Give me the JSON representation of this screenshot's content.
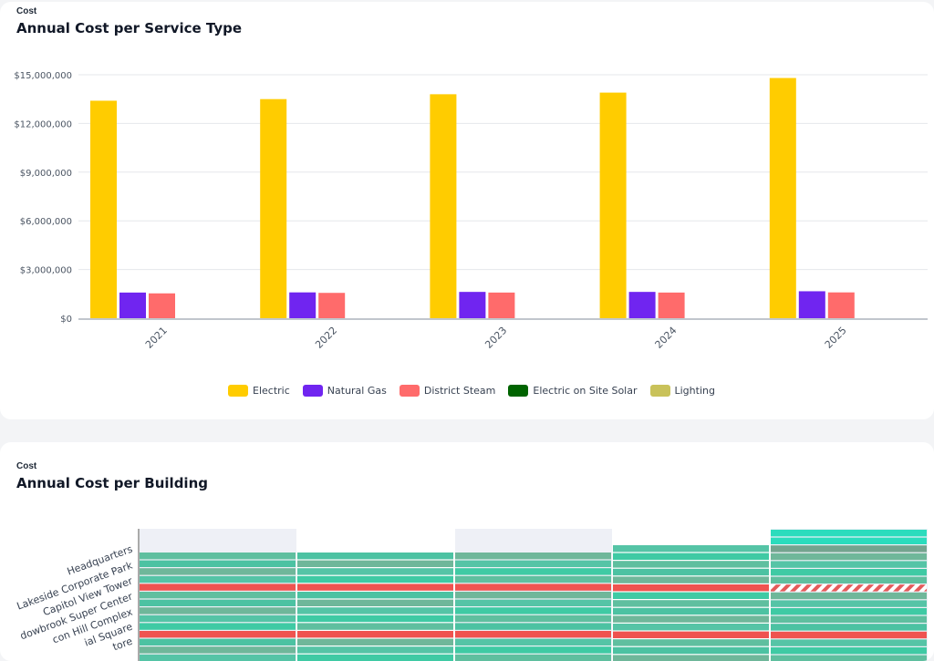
{
  "panel1": {
    "kicker": "Cost",
    "title": "Annual Cost per Service Type"
  },
  "panel2": {
    "kicker": "Cost",
    "title": "Annual Cost per Building",
    "buildings": [
      "Headquarters",
      "Lakeside Corporate Park",
      "Capitol View Tower",
      "dowbrook Super Center",
      "con Hill Complex",
      "ial Square",
      "tore"
    ]
  },
  "chart_data": [
    {
      "type": "bar",
      "title": "Annual Cost per Service Type",
      "xlabel": "",
      "ylabel": "",
      "categories": [
        "2021",
        "2022",
        "2023",
        "2024",
        "2025"
      ],
      "series": [
        {
          "name": "Electric",
          "color": "#ffcc00",
          "values": [
            13400000,
            13500000,
            13800000,
            13900000,
            14800000
          ]
        },
        {
          "name": "Natural Gas",
          "color": "#7025f0",
          "values": [
            1580000,
            1590000,
            1620000,
            1620000,
            1660000
          ]
        },
        {
          "name": "District Steam",
          "color": "#ff6b6b",
          "values": [
            1530000,
            1560000,
            1580000,
            1580000,
            1590000
          ]
        },
        {
          "name": "Electric on Site Solar",
          "color": "#006400",
          "values": [
            0,
            0,
            0,
            0,
            0
          ]
        },
        {
          "name": "Lighting",
          "color": "#c9c25a",
          "values": [
            0,
            0,
            0,
            0,
            0
          ]
        }
      ],
      "ylim": [
        0,
        15000000
      ],
      "yticks": [
        0,
        3000000,
        6000000,
        9000000,
        12000000,
        15000000
      ],
      "ytick_labels": [
        "$0",
        "$3,000,000",
        "$6,000,000",
        "$9,000,000",
        "$12,000,000",
        "$15,000,000"
      ],
      "grid": true,
      "legend": "bottom-center"
    }
  ]
}
